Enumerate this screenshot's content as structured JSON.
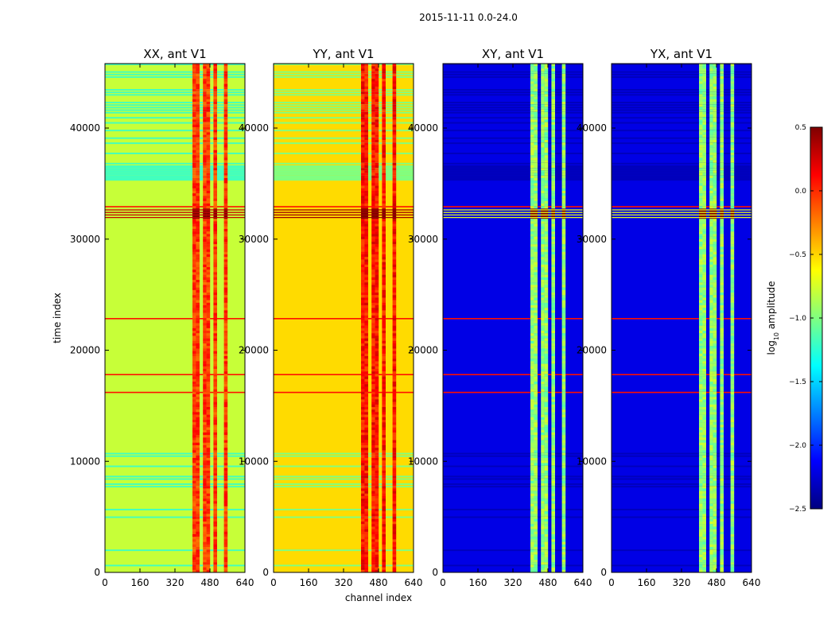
{
  "chart_data": {
    "type": "heatmap",
    "title": "2015-11-11 0.0-24.0",
    "xlabel": "channel index",
    "ylabel": "time index",
    "xlim": [
      0,
      640
    ],
    "ylim": [
      0,
      45800
    ],
    "x_ticks": [
      "0",
      "160",
      "320",
      "480",
      "640"
    ],
    "y_ticks": [
      "0",
      "10000",
      "20000",
      "30000",
      "40000"
    ],
    "colorbar": {
      "label": "log10 amplitude",
      "label_main": "log",
      "label_sub": "10",
      "label_rest": " amplitude",
      "range": [
        -2.5,
        0.5
      ],
      "ticks": [
        "0.5",
        "0.0",
        "−0.5",
        "−1.0",
        "−1.5",
        "−2.0",
        "−2.5"
      ],
      "colormap": "jet"
    },
    "panels": [
      {
        "title": "XX, ant V1",
        "base_level": 0.57,
        "rfi_level": 0.82,
        "bright_burst_level": 1.0,
        "band_level_low": 0.44,
        "band_level_high": 0.78
      },
      {
        "title": "YY, ant V1",
        "base_level": 0.66,
        "rfi_level": 0.86,
        "bright_burst_level": 1.0,
        "band_level_low": 0.5,
        "band_level_high": 0.82
      },
      {
        "title": "XY, ant V1",
        "base_level": 0.1,
        "rfi_level": 0.52,
        "bright_burst_level": 1.0,
        "band_level_low": 0.06,
        "band_level_high": 0.45
      },
      {
        "title": "YX, ant V1",
        "base_level": 0.1,
        "rfi_level": 0.52,
        "bright_burst_level": 1.0,
        "band_level_low": 0.06,
        "band_level_high": 0.45
      }
    ]
  }
}
